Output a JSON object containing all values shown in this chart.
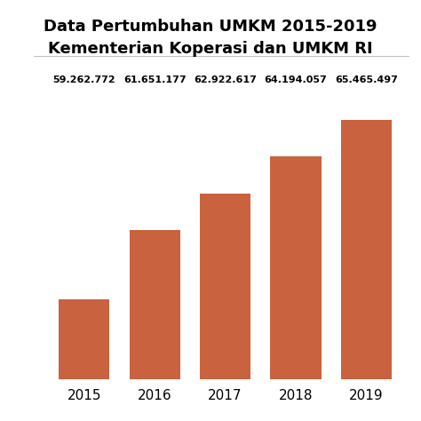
{
  "title_line1": "Data Pertumbuhan UMKM 2015-2019",
  "title_line2": "Kementerian Koperasi dan UMKM RI",
  "years": [
    "2015",
    "2016",
    "2017",
    "2018",
    "2019"
  ],
  "values": [
    59262772,
    61651177,
    62922617,
    64194057,
    65465497
  ],
  "labels": [
    "59.262.772",
    "61.651.177",
    "62.922.617",
    "64.194.057",
    "65.465.497"
  ],
  "bar_color": "#C9623F",
  "background_color": "#ffffff",
  "title_fontsize": 13,
  "label_fontsize": 8,
  "tick_fontsize": 11,
  "ylabel_fontsize": 9,
  "ylim_min": 56500000,
  "ylim_max": 67500000
}
